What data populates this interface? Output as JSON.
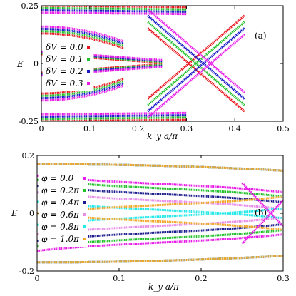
{
  "chart_data": [
    {
      "type": "scatter",
      "panel_label": "(a)",
      "xlabel": "k_y a/π",
      "ylabel": "E",
      "xlim": [
        0,
        0.5
      ],
      "ylim": [
        -0.25,
        0.25
      ],
      "xticks": [
        "0",
        "0.1",
        "0.2",
        "0.3",
        "0.4",
        "0.5"
      ],
      "xtick_values": [
        0,
        0.1,
        0.2,
        0.3,
        0.4,
        0.5
      ],
      "yticks": [
        "0.25",
        "0",
        "-0.25"
      ],
      "ytick_values": [
        0.25,
        0,
        -0.25
      ],
      "legend_position": "left",
      "series": [
        {
          "name": "δV = 0.0",
          "color": "#e8141c",
          "shift": 0.0,
          "crossing_x": 0.305
        },
        {
          "name": "δV = 0.1",
          "color": "#22c02a",
          "shift": 0.01,
          "crossing_x": 0.32
        },
        {
          "name": "δV = 0.2",
          "color": "#1a1ac8",
          "shift": 0.02,
          "crossing_x": 0.335
        },
        {
          "name": "δV = 0.3",
          "color": "#e81ae8",
          "shift": 0.03,
          "crossing_x": 0.35
        }
      ]
    },
    {
      "type": "scatter",
      "panel_label": "(b)",
      "xlabel": "k_y a/π",
      "ylabel": "E",
      "xlim": [
        0,
        0.3
      ],
      "ylim": [
        -0.2,
        0.2
      ],
      "xticks": [
        "0",
        "0.1",
        "0.2",
        "0.3"
      ],
      "xtick_values": [
        0,
        0.1,
        0.2,
        0.3
      ],
      "yticks": [
        "0.2",
        "0",
        "-0.2"
      ],
      "ytick_values": [
        0.2,
        0,
        -0.2
      ],
      "legend_position": "left",
      "series": [
        {
          "name": "φ = 0.0",
          "color": "#e81ae8",
          "gap": 0.13
        },
        {
          "name": "φ = 0.2π",
          "color": "#22c02a",
          "gap": 0.115
        },
        {
          "name": "φ = 0.4π",
          "color": "#1a1a8c",
          "gap": 0.095
        },
        {
          "name": "φ = 0.6π",
          "color": "#e88ce8",
          "gap": 0.072
        },
        {
          "name": "φ = 0.8π",
          "color": "#22e8e8",
          "gap": 0.04
        },
        {
          "name": "φ = 1.0π",
          "color": "#f0a628",
          "gap": 0.0
        }
      ]
    }
  ]
}
